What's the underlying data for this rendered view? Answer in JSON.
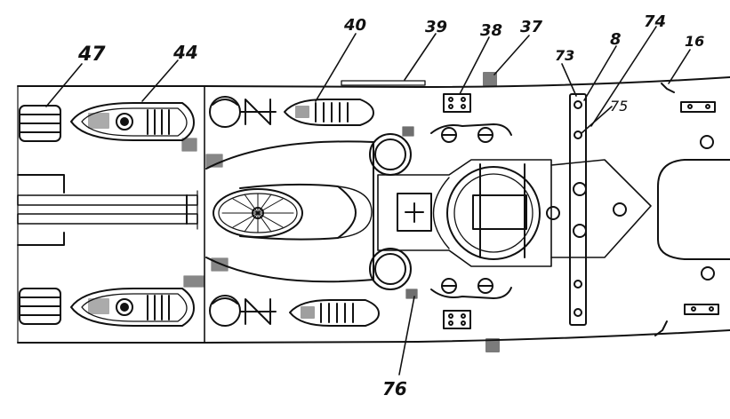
{
  "diagram": {
    "callouts": [
      {
        "id": "47",
        "label": "47"
      },
      {
        "id": "44",
        "label": "44"
      },
      {
        "id": "40",
        "label": "40"
      },
      {
        "id": "39",
        "label": "39"
      },
      {
        "id": "38",
        "label": "38"
      },
      {
        "id": "37",
        "label": "37"
      },
      {
        "id": "73",
        "label": "73"
      },
      {
        "id": "8",
        "label": "8"
      },
      {
        "id": "74",
        "label": "74"
      },
      {
        "id": "16",
        "label": "16"
      },
      {
        "id": "75",
        "label": "75"
      },
      {
        "id": "76",
        "label": "76"
      }
    ],
    "colors": {
      "ink": "#111111",
      "paper": "#ffffff"
    }
  }
}
